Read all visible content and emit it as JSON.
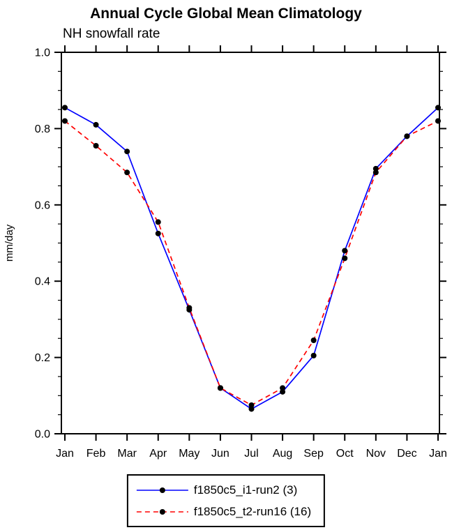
{
  "chart_data": {
    "type": "line",
    "title": "Annual Cycle Global Mean Climatology",
    "subtitle": "NH snowfall rate",
    "ylabel": "mm/day",
    "ylim": [
      0.0,
      1.0
    ],
    "ytick_interval": 0.2,
    "yminor_interval": 0.05,
    "ytick_labels": [
      "0.0",
      "0.2",
      "0.4",
      "0.6",
      "0.8",
      "1.0"
    ],
    "categories": [
      "Jan",
      "Feb",
      "Mar",
      "Apr",
      "May",
      "Jun",
      "Jul",
      "Aug",
      "Sep",
      "Oct",
      "Nov",
      "Dec",
      "Jan"
    ],
    "series": [
      {
        "name": "f1850c5_i1-run2 (3)",
        "color": "#0000ff",
        "dash": "solid",
        "marker": "dot",
        "values": [
          0.855,
          0.81,
          0.74,
          0.525,
          0.325,
          0.12,
          0.065,
          0.11,
          0.205,
          0.48,
          0.695,
          0.78,
          0.855
        ]
      },
      {
        "name": "f1850c5_t2-run16 (16)",
        "color": "#ff0000",
        "dash": "dashed",
        "marker": "dot",
        "values": [
          0.82,
          0.755,
          0.685,
          0.555,
          0.33,
          0.12,
          0.075,
          0.12,
          0.245,
          0.46,
          0.685,
          0.78,
          0.82
        ]
      }
    ],
    "marker_color": "#000000",
    "axis_color": "#000000",
    "legend_position": "bottom",
    "grid": false
  }
}
